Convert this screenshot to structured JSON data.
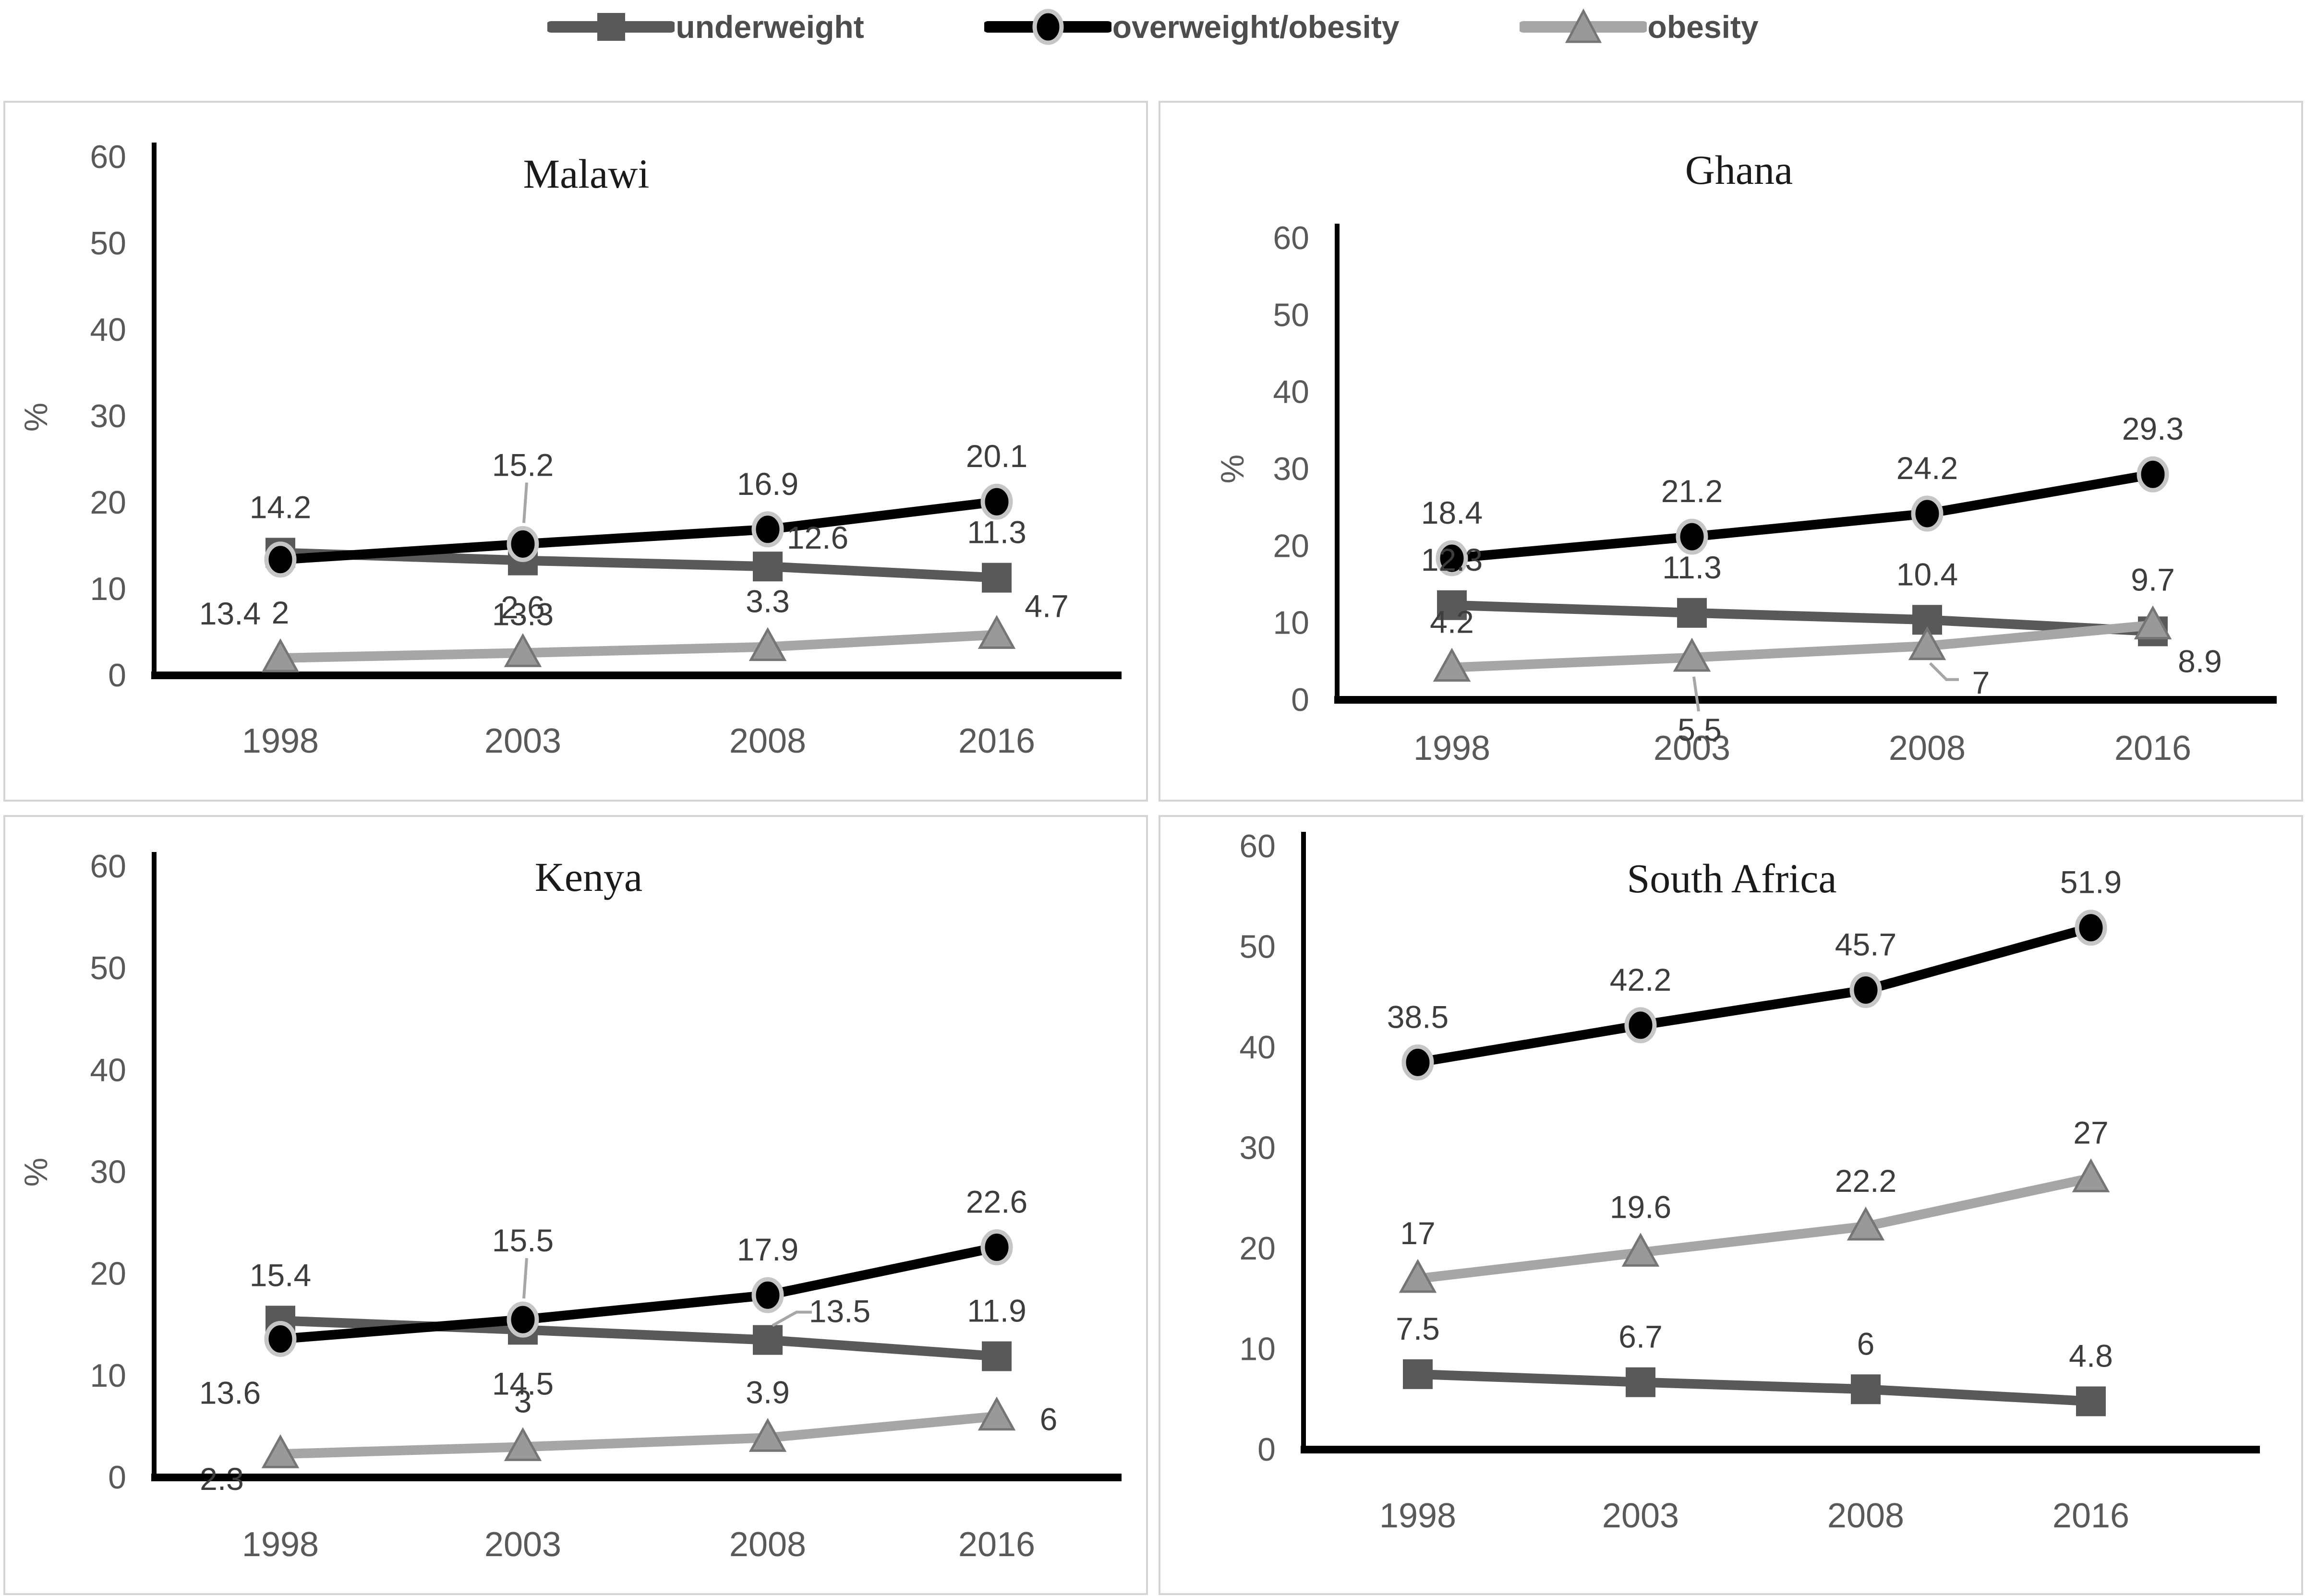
{
  "page": {
    "background": "#ffffff"
  },
  "legend": {
    "items": [
      {
        "label": "underweight",
        "marker": "square",
        "color": "#595959",
        "marker_fill": "#595959",
        "marker_stroke": "#7f7f7f"
      },
      {
        "label": "overweight/obesity",
        "marker": "circle",
        "color": "#000000",
        "marker_fill": "#000000",
        "marker_stroke": "#c6c6c6"
      },
      {
        "label": "obesity",
        "marker": "triangle",
        "color": "#a6a6a6",
        "marker_fill": "#999999",
        "marker_stroke": "#757575"
      }
    ]
  },
  "chart_data": [
    {
      "type": "line",
      "title": "Malawi",
      "ylabel": "%",
      "xlabel": "",
      "categories": [
        "1998",
        "2003",
        "2008",
        "2016"
      ],
      "ylim": [
        0,
        60
      ],
      "yticks": [
        0,
        10,
        20,
        30,
        40,
        50,
        60
      ],
      "grid": false,
      "series": [
        {
          "name": "underweight",
          "color": "#595959",
          "marker": "square",
          "marker_fill": "#595959",
          "marker_stroke": "#7f7f7f",
          "values": [
            14.2,
            13.3,
            12.6,
            11.3
          ],
          "label_placements": [
            "above",
            "below",
            "above-right",
            "above"
          ]
        },
        {
          "name": "overweight/obesity",
          "color": "#000000",
          "marker": "circle",
          "marker_fill": "#000000",
          "marker_stroke": "#c6c6c6",
          "values": [
            13.4,
            15.2,
            16.9,
            20.1
          ],
          "label_placements": [
            "below-left",
            "above-leader",
            "above",
            "above"
          ]
        },
        {
          "name": "obesity",
          "color": "#a6a6a6",
          "marker": "triangle",
          "marker_fill": "#999999",
          "marker_stroke": "#757575",
          "values": [
            2,
            2.6,
            3.3,
            4.7
          ],
          "label_placements": [
            "above",
            "above",
            "above",
            "above-right"
          ]
        }
      ]
    },
    {
      "type": "line",
      "title": "Ghana",
      "ylabel": "%",
      "xlabel": "",
      "categories": [
        "1998",
        "2003",
        "2008",
        "2016"
      ],
      "ylim": [
        0,
        60
      ],
      "yticks": [
        0,
        10,
        20,
        30,
        40,
        50,
        60
      ],
      "grid": false,
      "series": [
        {
          "name": "underweight",
          "color": "#595959",
          "marker": "square",
          "marker_fill": "#595959",
          "marker_stroke": "#7f7f7f",
          "values": [
            12.3,
            11.3,
            10.4,
            8.9
          ],
          "label_placements": [
            "above",
            "above",
            "above",
            "below-right"
          ]
        },
        {
          "name": "overweight/obesity",
          "color": "#000000",
          "marker": "circle",
          "marker_fill": "#000000",
          "marker_stroke": "#c6c6c6",
          "values": [
            18.4,
            21.2,
            24.2,
            29.3
          ],
          "label_placements": [
            "above",
            "above",
            "above",
            "above"
          ]
        },
        {
          "name": "obesity",
          "color": "#a6a6a6",
          "marker": "triangle",
          "marker_fill": "#999999",
          "marker_stroke": "#757575",
          "values": [
            4.2,
            5.5,
            7,
            9.7
          ],
          "label_placements": [
            "above",
            "below-axis-leader",
            "right-leader",
            "above"
          ]
        }
      ]
    },
    {
      "type": "line",
      "title": "Kenya",
      "ylabel": "%",
      "xlabel": "",
      "categories": [
        "1998",
        "2003",
        "2008",
        "2016"
      ],
      "ylim": [
        0,
        60
      ],
      "yticks": [
        0,
        10,
        20,
        30,
        40,
        50,
        60
      ],
      "grid": false,
      "series": [
        {
          "name": "underweight",
          "color": "#595959",
          "marker": "square",
          "marker_fill": "#595959",
          "marker_stroke": "#7f7f7f",
          "values": [
            15.4,
            14.5,
            13.5,
            11.9
          ],
          "label_placements": [
            "above",
            "below",
            "right-leader-up",
            "above"
          ]
        },
        {
          "name": "overweight/obesity",
          "color": "#000000",
          "marker": "circle",
          "marker_fill": "#000000",
          "marker_stroke": "#c6c6c6",
          "values": [
            13.6,
            15.5,
            17.9,
            22.6
          ],
          "label_placements": [
            "below-left",
            "above-leader",
            "above",
            "above"
          ]
        },
        {
          "name": "obesity",
          "color": "#a6a6a6",
          "marker": "triangle",
          "marker_fill": "#999999",
          "marker_stroke": "#757575",
          "values": [
            2.3,
            3,
            3.9,
            6
          ],
          "label_placements": [
            "left",
            "above",
            "above",
            "right"
          ]
        }
      ]
    },
    {
      "type": "line",
      "title": "South Africa",
      "ylabel": "",
      "xlabel": "",
      "categories": [
        "1998",
        "2003",
        "2008",
        "2016"
      ],
      "ylim": [
        0,
        60
      ],
      "yticks": [
        0,
        10,
        20,
        30,
        40,
        50,
        60
      ],
      "grid": false,
      "series": [
        {
          "name": "underweight",
          "color": "#595959",
          "marker": "square",
          "marker_fill": "#595959",
          "marker_stroke": "#7f7f7f",
          "values": [
            7.5,
            6.7,
            6,
            4.8
          ],
          "label_placements": [
            "above",
            "above",
            "above",
            "above"
          ]
        },
        {
          "name": "overweight/obesity",
          "color": "#000000",
          "marker": "circle",
          "marker_fill": "#000000",
          "marker_stroke": "#c6c6c6",
          "values": [
            38.5,
            42.2,
            45.7,
            51.9
          ],
          "label_placements": [
            "above",
            "above",
            "above",
            "above"
          ]
        },
        {
          "name": "obesity",
          "color": "#a6a6a6",
          "marker": "triangle",
          "marker_fill": "#999999",
          "marker_stroke": "#757575",
          "values": [
            17,
            19.6,
            22.2,
            27
          ],
          "label_placements": [
            "above",
            "above",
            "above",
            "above"
          ]
        }
      ]
    }
  ]
}
